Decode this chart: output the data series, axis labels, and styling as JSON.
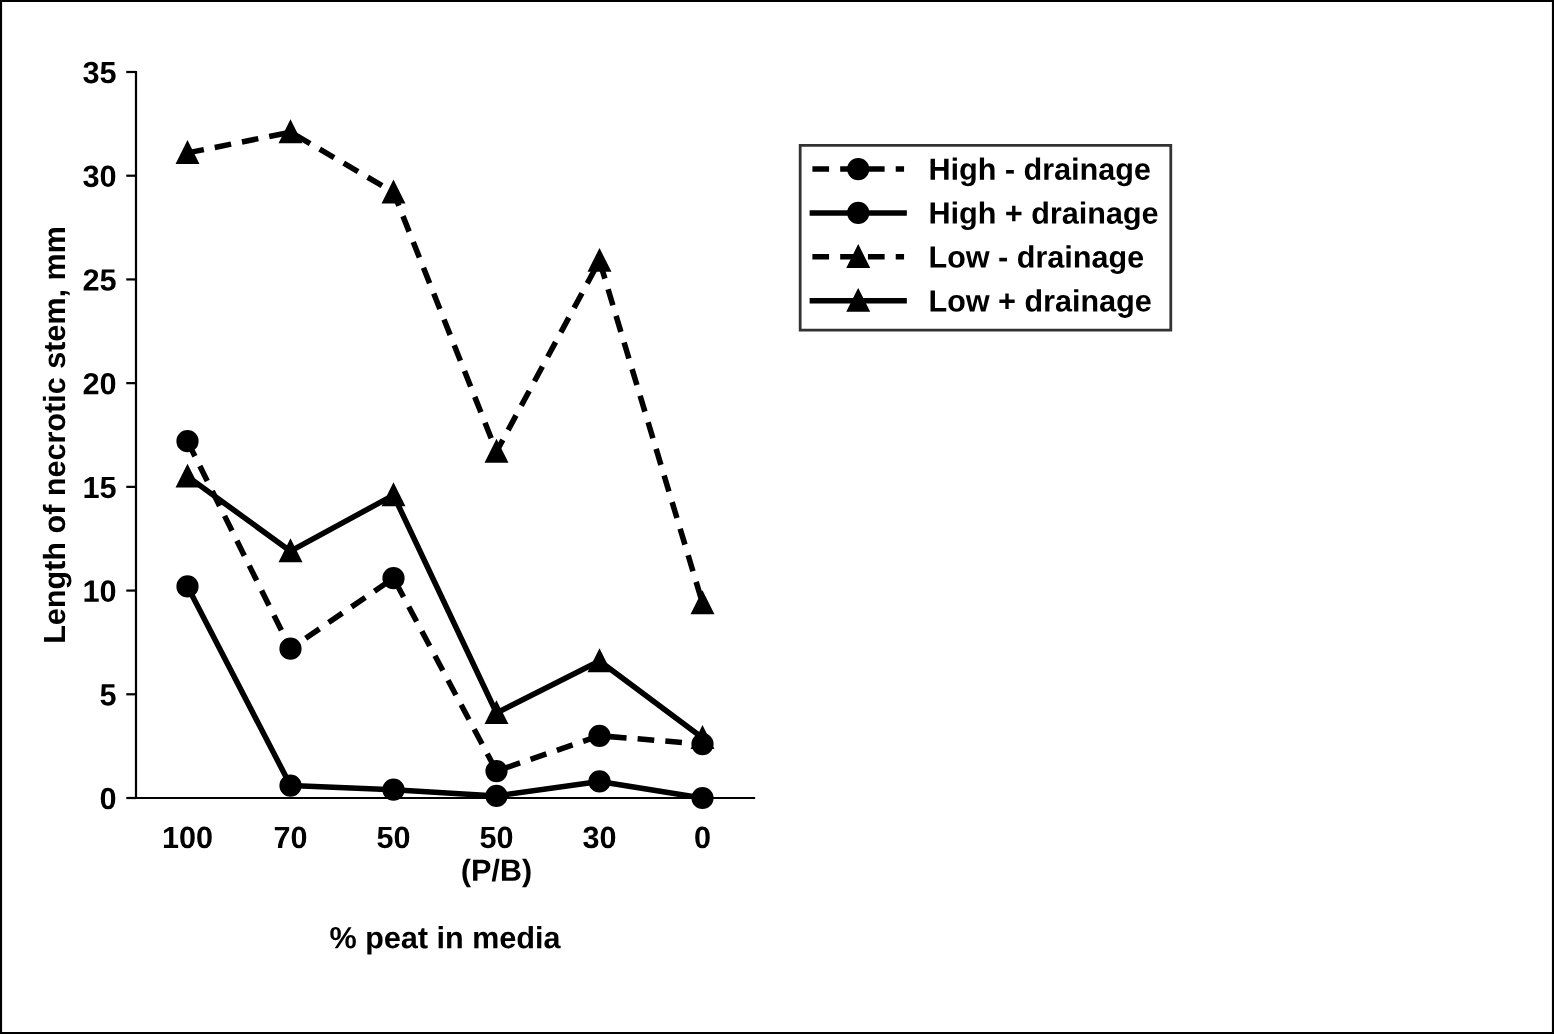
{
  "chart_data": {
    "type": "line",
    "xlabel": "% peat in media",
    "ylabel": "Length of necrotic stem, mm",
    "categories": [
      "100",
      "70",
      "50",
      "50\n(P/B)",
      "30",
      "0"
    ],
    "ylim": [
      0,
      35
    ],
    "yticks": [
      0,
      5,
      10,
      15,
      20,
      25,
      30,
      35
    ],
    "grid": false,
    "legend": "top right",
    "series": [
      {
        "name": "High - drainage",
        "color": "#000000",
        "marker": "circle",
        "line_style": "dashed",
        "values": [
          17.2,
          7.2,
          10.6,
          1.3,
          3.0,
          2.6
        ]
      },
      {
        "name": "High + drainage",
        "color": "#000000",
        "marker": "circle",
        "line_style": "solid",
        "values": [
          10.2,
          0.6,
          0.4,
          0.1,
          0.8,
          0.0
        ]
      },
      {
        "name": "Low - drainage",
        "color": "#000000",
        "marker": "triangle",
        "line_style": "dashed",
        "values": [
          31.1,
          32.1,
          29.2,
          16.7,
          25.9,
          9.4
        ]
      },
      {
        "name": "Low + drainage",
        "color": "#000000",
        "marker": "triangle",
        "line_style": "solid",
        "values": [
          15.5,
          11.9,
          14.6,
          4.1,
          6.6,
          2.9
        ]
      }
    ]
  }
}
